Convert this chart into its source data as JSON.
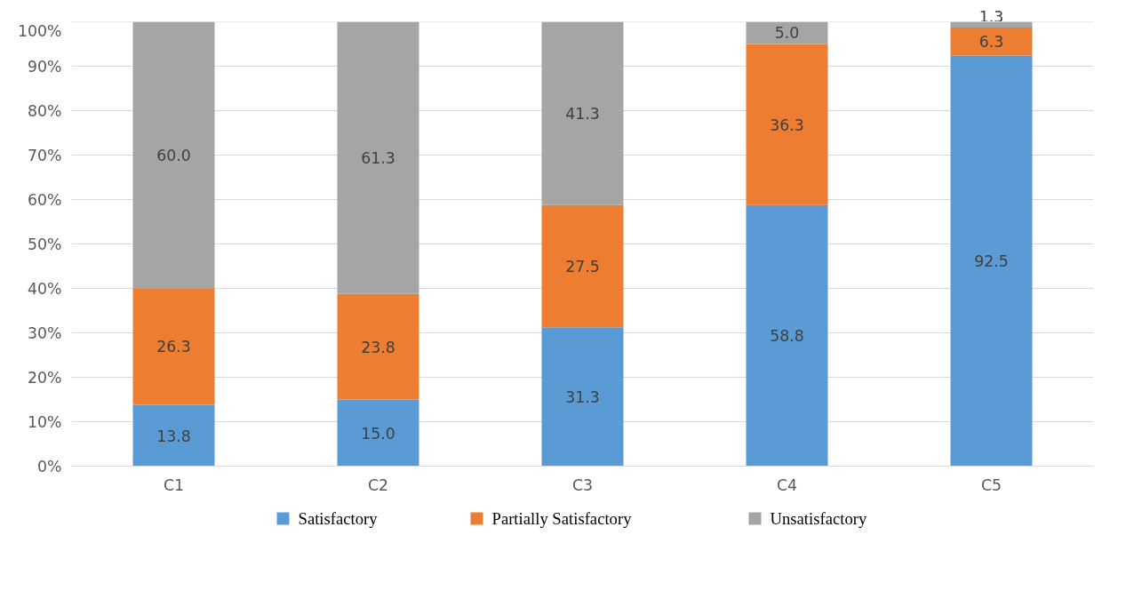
{
  "chart_data": {
    "type": "bar",
    "stacked": true,
    "categories": [
      "C1",
      "C2",
      "C3",
      "C4",
      "C5"
    ],
    "series": [
      {
        "name": "Satisfactory",
        "color": "#5b9bd5",
        "values": [
          13.8,
          15.0,
          31.3,
          58.8,
          92.5
        ],
        "value_labels": [
          "13.8",
          "15.0",
          "31.3",
          "58.8",
          "92.5"
        ]
      },
      {
        "name": "Partially Satisfactory",
        "color": "#ed7d31",
        "values": [
          26.3,
          23.8,
          27.5,
          36.3,
          6.3
        ],
        "value_labels": [
          "26.3",
          "23.8",
          "27.5",
          "36.3",
          "6.3"
        ]
      },
      {
        "name": "Unsatisfactory",
        "color": "#a5a5a5",
        "values": [
          60.0,
          61.3,
          41.3,
          5.0,
          1.3
        ],
        "value_labels": [
          "60.0",
          "61.3",
          "41.3",
          "5.0",
          "1.3"
        ]
      }
    ],
    "ylim": [
      0,
      100.1
    ],
    "yticks": [
      {
        "value": 0,
        "label": "0%"
      },
      {
        "value": 10,
        "label": "10%"
      },
      {
        "value": 20,
        "label": "20%"
      },
      {
        "value": 30,
        "label": "30%"
      },
      {
        "value": 40,
        "label": "40%"
      },
      {
        "value": 50,
        "label": "50%"
      },
      {
        "value": 60,
        "label": "60%"
      },
      {
        "value": 70,
        "label": "70%"
      },
      {
        "value": 80,
        "label": "80%"
      },
      {
        "value": 90,
        "label": "90%"
      },
      {
        "value": 100,
        "label": "100%"
      }
    ],
    "grid": "y",
    "legend": "bottom"
  }
}
